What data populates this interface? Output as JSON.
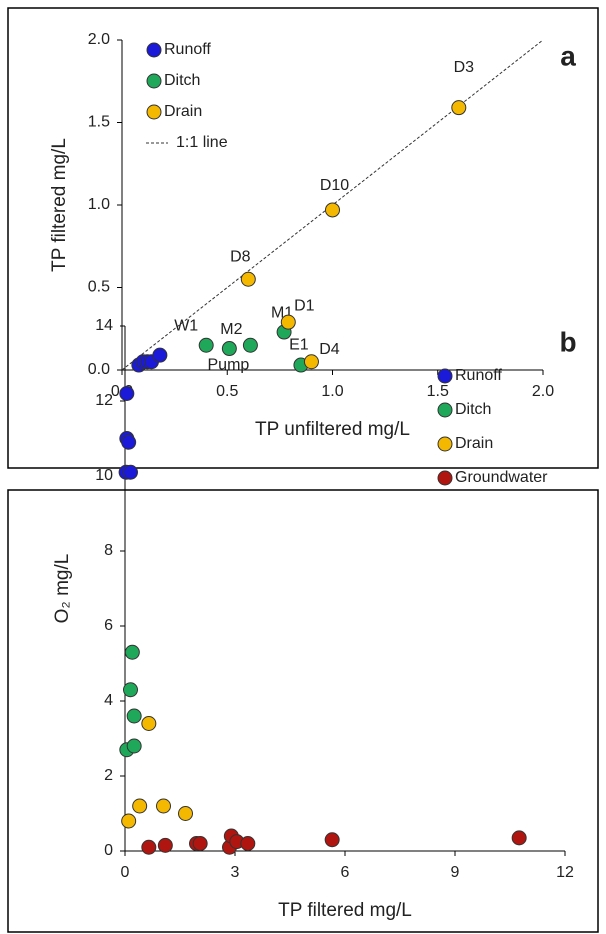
{
  "chart_data": [
    {
      "type": "scatter",
      "panel_label": "a",
      "x_label": "TP unfiltered mg/L",
      "y_label": "TP filtered  mg/L",
      "xlim": [
        0,
        2
      ],
      "ylim": [
        0,
        2
      ],
      "xticks": [
        {
          "value": 0,
          "label": "0.0"
        },
        {
          "value": 0.5,
          "label": "0.5"
        },
        {
          "value": 1,
          "label": "1.0"
        },
        {
          "value": 1.5,
          "label": "1.5"
        },
        {
          "value": 2,
          "label": "2.0"
        }
      ],
      "yticks": [
        {
          "value": 0,
          "label": "0.0"
        },
        {
          "value": 0.5,
          "label": "0.5"
        },
        {
          "value": 1,
          "label": "1.0"
        },
        {
          "value": 1.5,
          "label": "1.5"
        },
        {
          "value": 2,
          "label": "2.0"
        }
      ],
      "legend": "upper left",
      "reference_line": {
        "name": "1:1 line",
        "slope": 1
      },
      "series": [
        {
          "name": "Runoff",
          "color": "#1a1ad8",
          "x": [
            0.08,
            0.1,
            0.12,
            0.14,
            0.18
          ],
          "values": [
            0.03,
            0.05,
            0.05,
            0.05,
            0.09
          ]
        },
        {
          "name": "Ditch",
          "color": "#1fa85a",
          "x": [
            0.4,
            0.51,
            0.61,
            0.77,
            0.85
          ],
          "values": [
            0.15,
            0.13,
            0.15,
            0.23,
            0.03
          ],
          "labels": [
            "W1",
            "M2",
            "Pump",
            "M1",
            "E1"
          ]
        },
        {
          "name": "Drain",
          "color": "#f5b800",
          "x": [
            0.6,
            1.0,
            1.6,
            0.79,
            0.9
          ],
          "values": [
            0.55,
            0.97,
            1.59,
            0.29,
            0.05
          ],
          "labels": [
            "D8",
            "D10",
            "D3",
            "D1",
            "D4"
          ]
        }
      ]
    },
    {
      "type": "scatter",
      "panel_label": "b",
      "x_label": "TP filtered mg/L",
      "y_label": "O₂ mg/L",
      "xlim": [
        0,
        12
      ],
      "ylim": [
        0,
        14
      ],
      "xticks": [
        0,
        3,
        6,
        9,
        12
      ],
      "yticks": [
        0,
        2,
        4,
        6,
        8,
        10,
        12,
        14
      ],
      "legend": "upper right",
      "series": [
        {
          "name": "Runoff",
          "color": "#1a1ad8",
          "x": [
            0.05,
            0.05,
            0.1,
            0.03,
            0.15
          ],
          "values": [
            12.2,
            11.0,
            10.9,
            10.1,
            10.1
          ]
        },
        {
          "name": "Ditch",
          "color": "#1fa85a",
          "x": [
            0.2,
            0.15,
            0.25,
            0.05,
            0.25
          ],
          "values": [
            5.3,
            4.3,
            3.6,
            2.7,
            2.8
          ]
        },
        {
          "name": "Drain",
          "color": "#f5b800",
          "x": [
            0.1,
            0.4,
            0.65,
            1.05,
            1.65
          ],
          "values": [
            0.8,
            1.2,
            3.4,
            1.2,
            1.0
          ]
        },
        {
          "name": "Groundwater",
          "color": "#b0150f",
          "x": [
            0.65,
            1.1,
            1.95,
            2.05,
            2.85,
            2.9,
            3.05,
            3.35,
            5.65,
            10.75
          ],
          "values": [
            0.1,
            0.15,
            0.2,
            0.2,
            0.1,
            0.4,
            0.25,
            0.2,
            0.3,
            0.35
          ]
        }
      ]
    }
  ]
}
